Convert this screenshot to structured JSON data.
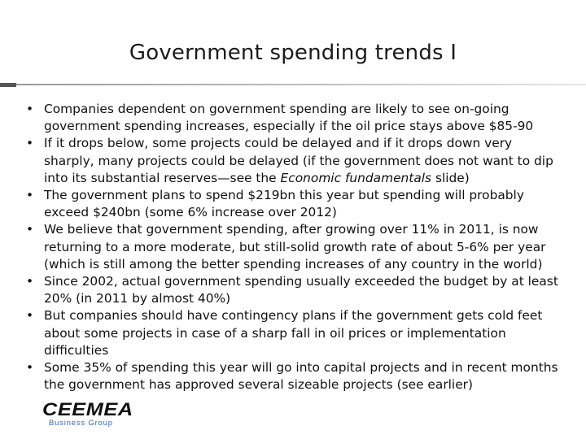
{
  "slide": {
    "title": "Government spending trends I"
  },
  "bullets": [
    {
      "text": "Companies dependent on government spending are likely to see on-going government spending increases, especially if the oil price stays above $85-90"
    },
    {
      "before": "If it drops below, some projects could be delayed and if it drops down very sharply, many projects could be delayed (if the government does not want to dip into its substantial reserves—see the ",
      "emph": "Economic fundamentals",
      "after": " slide)"
    },
    {
      "text": "The government plans to spend $219bn this year but spending will probably exceed $240bn (some 6% increase over 2012)"
    },
    {
      "text": "We believe that government spending, after growing over 11% in 2011, is now returning to a more moderate, but still-solid growth rate of about 5-6% per year (which is still among the better spending increases of any country in the world)"
    },
    {
      "text": "Since 2002, actual government spending usually exceeded the budget by at least 20% (in 2011 by almost 40%)"
    },
    {
      "text": "But companies should have contingency plans if the government gets cold feet about some projects in case of a sharp fall in oil prices or implementation difficulties"
    },
    {
      "text": "Some 35% of spending this year will go into capital projects and in recent months the government has approved several sizeable projects (see earlier)"
    }
  ],
  "bullet_glyph": "•",
  "logo": {
    "name": "CEEMEA",
    "tagline": "Business Group",
    "tagline_color": "#2d6cb5"
  }
}
